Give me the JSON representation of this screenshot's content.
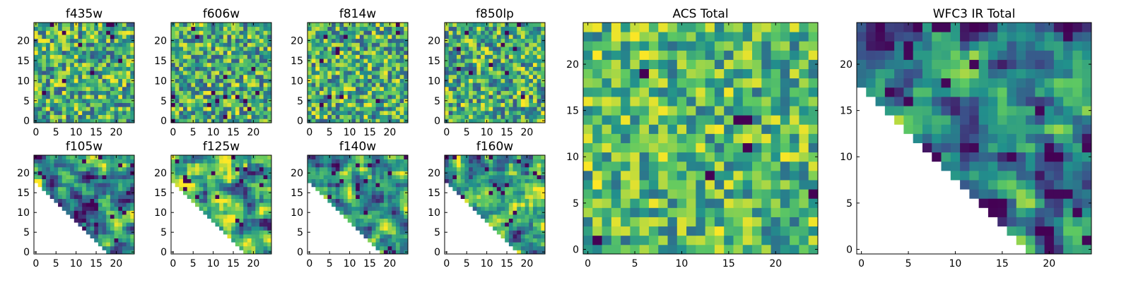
{
  "figure": {
    "description": "Grid of 10 heatmap panels: 8 per-filter images and 2 total images"
  },
  "colors": {
    "colormap": "viridis",
    "stops": [
      "#440154",
      "#3b528b",
      "#21918c",
      "#5ec962",
      "#fde725"
    ],
    "frame": "#000000",
    "background": "#ffffff"
  },
  "chart_data": [
    {
      "type": "heatmap",
      "title": "f435w",
      "xticks": [
        "0",
        "5",
        "10",
        "15",
        "20"
      ],
      "yticks": [
        "0",
        "5",
        "10",
        "15",
        "20"
      ],
      "xlim": [
        -0.5,
        24.5
      ],
      "ylim": [
        -0.5,
        24.5
      ],
      "pattern": "noise",
      "seed": 11,
      "mask": "none"
    },
    {
      "type": "heatmap",
      "title": "f606w",
      "xticks": [
        "0",
        "5",
        "10",
        "15",
        "20"
      ],
      "yticks": [
        "0",
        "5",
        "10",
        "15",
        "20"
      ],
      "xlim": [
        -0.5,
        24.5
      ],
      "ylim": [
        -0.5,
        24.5
      ],
      "pattern": "noise",
      "seed": 23,
      "mask": "none"
    },
    {
      "type": "heatmap",
      "title": "f814w",
      "xticks": [
        "0",
        "5",
        "10",
        "15",
        "20"
      ],
      "yticks": [
        "0",
        "5",
        "10",
        "15",
        "20"
      ],
      "xlim": [
        -0.5,
        24.5
      ],
      "ylim": [
        -0.5,
        24.5
      ],
      "pattern": "noise",
      "seed": 37,
      "mask": "none"
    },
    {
      "type": "heatmap",
      "title": "f850lp",
      "xticks": [
        "0",
        "5",
        "10",
        "15",
        "20"
      ],
      "yticks": [
        "0",
        "5",
        "10",
        "15",
        "20"
      ],
      "xlim": [
        -0.5,
        24.5
      ],
      "ylim": [
        -0.5,
        24.5
      ],
      "pattern": "noise",
      "seed": 51,
      "mask": "none"
    },
    {
      "type": "heatmap",
      "title": "f105w",
      "xticks": [
        "0",
        "5",
        "10",
        "15",
        "20"
      ],
      "yticks": [
        "0",
        "5",
        "10",
        "15",
        "20"
      ],
      "xlim": [
        -0.5,
        24.5
      ],
      "ylim": [
        -0.5,
        24.5
      ],
      "pattern": "smooth",
      "seed": 63,
      "mask": "lower-left-triangle"
    },
    {
      "type": "heatmap",
      "title": "f125w",
      "xticks": [
        "0",
        "5",
        "10",
        "15",
        "20"
      ],
      "yticks": [
        "0",
        "5",
        "10",
        "15",
        "20"
      ],
      "xlim": [
        -0.5,
        24.5
      ],
      "ylim": [
        -0.5,
        24.5
      ],
      "pattern": "smooth",
      "seed": 77,
      "mask": "lower-left-triangle"
    },
    {
      "type": "heatmap",
      "title": "f140w",
      "xticks": [
        "0",
        "5",
        "10",
        "15",
        "20"
      ],
      "yticks": [
        "0",
        "5",
        "10",
        "15",
        "20"
      ],
      "xlim": [
        -0.5,
        24.5
      ],
      "ylim": [
        -0.5,
        24.5
      ],
      "pattern": "smooth",
      "seed": 89,
      "mask": "lower-left-triangle"
    },
    {
      "type": "heatmap",
      "title": "f160w",
      "xticks": [
        "0",
        "5",
        "10",
        "15",
        "20"
      ],
      "yticks": [
        "0",
        "5",
        "10",
        "15",
        "20"
      ],
      "xlim": [
        -0.5,
        24.5
      ],
      "ylim": [
        -0.5,
        24.5
      ],
      "pattern": "smooth",
      "seed": 97,
      "mask": "lower-left-triangle"
    },
    {
      "type": "heatmap",
      "title": "ACS Total",
      "xticks": [
        "0",
        "5",
        "10",
        "15",
        "20"
      ],
      "yticks": [
        "0",
        "5",
        "10",
        "15",
        "20"
      ],
      "xlim": [
        -0.5,
        24.5
      ],
      "ylim": [
        -0.5,
        24.5
      ],
      "pattern": "noise-bright",
      "seed": 131,
      "mask": "none"
    },
    {
      "type": "heatmap",
      "title": "WFC3 IR Total",
      "xticks": [
        "0",
        "5",
        "10",
        "15",
        "20"
      ],
      "yticks": [
        "0",
        "5",
        "10",
        "15",
        "20"
      ],
      "xlim": [
        -0.5,
        24.5
      ],
      "ylim": [
        -0.5,
        24.5
      ],
      "pattern": "smooth-dark",
      "seed": 149,
      "mask": "lower-left-triangle"
    }
  ]
}
